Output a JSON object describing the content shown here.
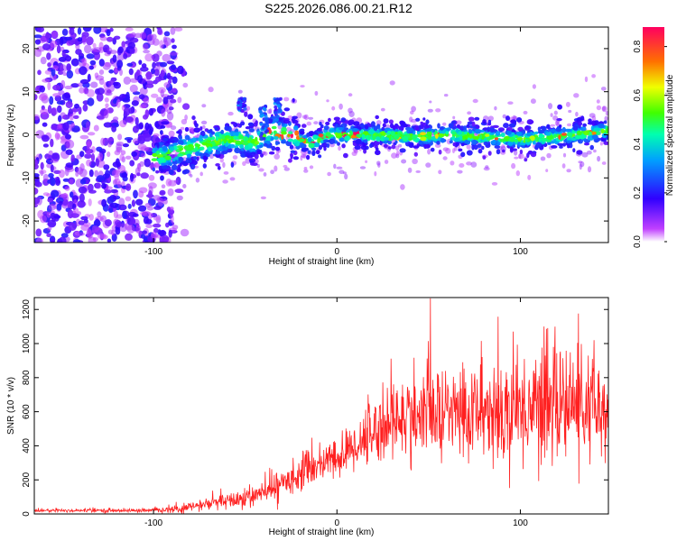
{
  "title": "S225.2026.086.00.21.R12",
  "chart_data": [
    {
      "type": "heatmap",
      "title": "S225.2026.086.00.21.R12",
      "xlabel": "Height of straight line (km)",
      "ylabel": "Frequency (Hz)",
      "xlim": [
        -165,
        148
      ],
      "ylim": [
        -25,
        25
      ],
      "xticks": [
        -100,
        0,
        100
      ],
      "yticks": [
        -20,
        -10,
        0,
        10,
        20
      ],
      "colorbar": {
        "label": "Normalized spectral amplitude",
        "range": [
          0.0,
          0.88
        ],
        "ticks": [
          0.0,
          0.2,
          0.4,
          0.6,
          0.8
        ]
      },
      "ridge": {
        "x": [
          -95,
          -80,
          -60,
          -45,
          -35,
          -25,
          -15,
          -5,
          5,
          20,
          40,
          60,
          80,
          100,
          120,
          148
        ],
        "y": [
          -5,
          -3,
          -1,
          -2,
          1,
          0,
          -2,
          0,
          0,
          0,
          -0.5,
          0,
          -0.5,
          -1,
          -0.5,
          1
        ]
      }
    },
    {
      "type": "line",
      "xlabel": "Height of straight line (km)",
      "ylabel": "SNR (10 * v/v)",
      "xlim": [
        -165,
        148
      ],
      "ylim": [
        0,
        1270
      ],
      "xticks": [
        -100,
        0,
        100
      ],
      "yticks": [
        0,
        200,
        400,
        600,
        800,
        1000,
        1200
      ],
      "series": [
        {
          "name": "SNR",
          "color": "#ff2020",
          "envelope": {
            "x": [
              -165,
              -100,
              -85,
              -70,
              -55,
              -40,
              -30,
              -20,
              -10,
              0,
              10,
              20,
              30,
              40,
              60,
              80,
              100,
              120,
              130,
              148
            ],
            "mean": [
              20,
              20,
              30,
              60,
              80,
              120,
              180,
              240,
              290,
              320,
              400,
              490,
              540,
              570,
              590,
              600,
              620,
              640,
              640,
              580
            ],
            "spread": [
              10,
              10,
              25,
              35,
              50,
              60,
              80,
              90,
              100,
              110,
              140,
              180,
              220,
              240,
              260,
              280,
              300,
              320,
              300,
              280
            ]
          }
        }
      ]
    }
  ]
}
